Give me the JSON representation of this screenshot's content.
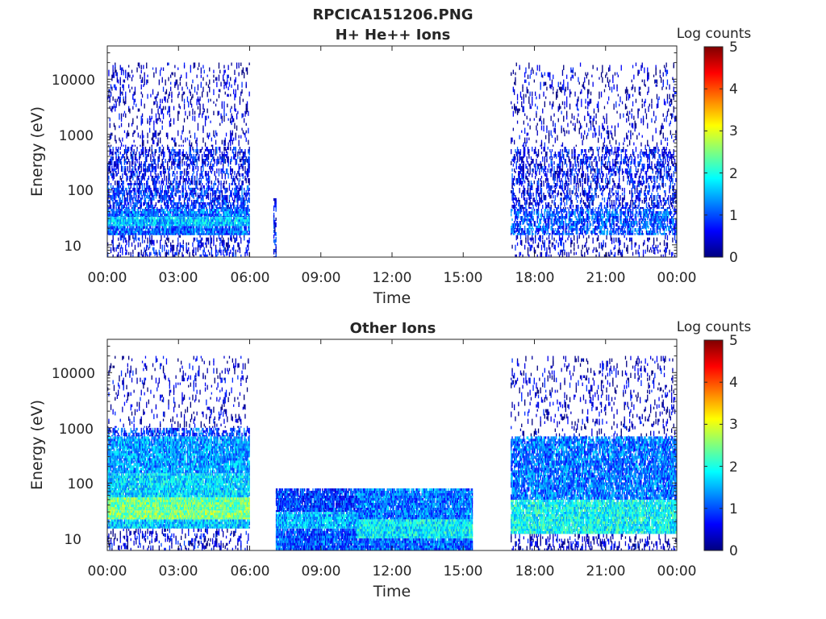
{
  "figure": {
    "title": "RPCICA151206.PNG"
  },
  "colormap": [
    "#00007f",
    "#0000ff",
    "#007fff",
    "#00ffff",
    "#7fff7f",
    "#ffff00",
    "#ff7f00",
    "#ff0000",
    "#7f0000"
  ],
  "chart_data": [
    {
      "type": "heatmap",
      "title": "H+ He++ Ions",
      "xlabel": "Time",
      "ylabel": "Energy (eV)",
      "x_tick_labels": [
        "00:00",
        "03:00",
        "06:00",
        "09:00",
        "12:00",
        "15:00",
        "18:00",
        "21:00",
        "00:00"
      ],
      "x_ticks_hours": [
        0,
        3,
        6,
        9,
        12,
        15,
        18,
        21,
        24
      ],
      "xlim_hours": [
        0,
        24
      ],
      "y_scale": "log",
      "y_tick_labels": [
        "10",
        "100",
        "1000",
        "10000"
      ],
      "y_ticks": [
        10,
        100,
        1000,
        10000
      ],
      "ylim": [
        6,
        40000
      ],
      "colorbar": {
        "label": "Log counts",
        "range": [
          0,
          5
        ],
        "tick_labels": [
          "0",
          "1",
          "2",
          "3",
          "4",
          "5"
        ],
        "ticks": [
          0,
          1,
          2,
          3,
          4,
          5
        ]
      },
      "regions": [
        {
          "t": [
            0,
            6
          ],
          "bands": [
            {
              "e": [
                6,
                15
              ],
              "level": 0.5,
              "density": 0.25
            },
            {
              "e": [
                15,
                22
              ],
              "level": 1.1,
              "density": 0.85
            },
            {
              "e": [
                22,
                32
              ],
              "level": 1.6,
              "density": 0.95
            },
            {
              "e": [
                32,
                45
              ],
              "level": 1.2,
              "density": 0.85
            },
            {
              "e": [
                45,
                120
              ],
              "level": 0.8,
              "density": 0.5
            },
            {
              "e": [
                120,
                600
              ],
              "level": 0.6,
              "density": 0.35
            },
            {
              "e": [
                600,
                20000
              ],
              "level": 0.3,
              "density": 0.12
            }
          ]
        },
        {
          "t": [
            7,
            7.1
          ],
          "bands": [
            {
              "e": [
                6,
                70
              ],
              "level": 0.6,
              "density": 0.5
            }
          ]
        },
        {
          "t": [
            17,
            24
          ],
          "bands": [
            {
              "e": [
                6,
                15
              ],
              "level": 0.3,
              "density": 0.18
            },
            {
              "e": [
                15,
                45
              ],
              "level": 1.0,
              "density": 0.55
            },
            {
              "e": [
                45,
                600
              ],
              "level": 0.6,
              "density": 0.3
            },
            {
              "e": [
                600,
                20000
              ],
              "level": 0.3,
              "density": 0.1
            }
          ]
        }
      ]
    },
    {
      "type": "heatmap",
      "title": "Other Ions",
      "xlabel": "Time",
      "ylabel": "Energy (eV)",
      "x_tick_labels": [
        "00:00",
        "03:00",
        "06:00",
        "09:00",
        "12:00",
        "15:00",
        "18:00",
        "21:00",
        "00:00"
      ],
      "x_ticks_hours": [
        0,
        3,
        6,
        9,
        12,
        15,
        18,
        21,
        24
      ],
      "xlim_hours": [
        0,
        24
      ],
      "y_scale": "log",
      "y_tick_labels": [
        "10",
        "100",
        "1000",
        "10000"
      ],
      "y_ticks": [
        10,
        100,
        1000,
        10000
      ],
      "ylim": [
        6,
        40000
      ],
      "colorbar": {
        "label": "Log counts",
        "range": [
          0,
          5
        ],
        "tick_labels": [
          "0",
          "1",
          "2",
          "3",
          "4",
          "5"
        ],
        "ticks": [
          0,
          1,
          2,
          3,
          4,
          5
        ]
      },
      "regions": [
        {
          "t": [
            0,
            6
          ],
          "bands": [
            {
              "e": [
                6,
                15
              ],
              "level": 0.4,
              "density": 0.2
            },
            {
              "e": [
                15,
                22
              ],
              "level": 1.6,
              "density": 0.95
            },
            {
              "e": [
                22,
                32
              ],
              "level": 2.5,
              "density": 1.0
            },
            {
              "e": [
                32,
                55
              ],
              "level": 2.4,
              "density": 1.0
            },
            {
              "e": [
                55,
                150
              ],
              "level": 1.7,
              "density": 0.95
            },
            {
              "e": [
                150,
                700
              ],
              "level": 1.4,
              "density": 0.85
            },
            {
              "e": [
                700,
                1000
              ],
              "level": 0.9,
              "density": 0.45
            },
            {
              "e": [
                1000,
                20000
              ],
              "level": 0.3,
              "density": 0.1
            }
          ]
        },
        {
          "t": [
            7.1,
            10.5
          ],
          "bands": [
            {
              "e": [
                6,
                15
              ],
              "level": 1.0,
              "density": 0.9
            },
            {
              "e": [
                15,
                30
              ],
              "level": 1.5,
              "density": 0.95
            },
            {
              "e": [
                30,
                80
              ],
              "level": 0.9,
              "density": 0.85
            }
          ]
        },
        {
          "t": [
            10.5,
            15.4
          ],
          "bands": [
            {
              "e": [
                6,
                10
              ],
              "level": 1.1,
              "density": 0.95
            },
            {
              "e": [
                10,
                22
              ],
              "level": 1.8,
              "density": 1.0
            },
            {
              "e": [
                22,
                80
              ],
              "level": 1.2,
              "density": 0.9
            }
          ]
        },
        {
          "t": [
            17,
            24
          ],
          "bands": [
            {
              "e": [
                6,
                12
              ],
              "level": 0.3,
              "density": 0.2
            },
            {
              "e": [
                12,
                50
              ],
              "level": 1.9,
              "density": 0.9
            },
            {
              "e": [
                50,
                700
              ],
              "level": 1.2,
              "density": 0.75
            },
            {
              "e": [
                700,
                20000
              ],
              "level": 0.3,
              "density": 0.1
            }
          ]
        }
      ]
    }
  ]
}
